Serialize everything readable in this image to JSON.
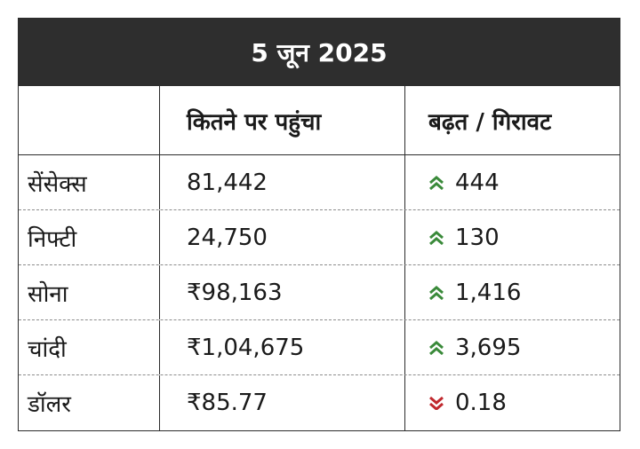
{
  "title": "5 जून 2025",
  "headers": [
    "",
    "कितने पर पहुंचा",
    "बढ़त / गिरावट"
  ],
  "colors": {
    "banner": "#2e2e2e",
    "up": "#3a8a3a",
    "down": "#c0282d"
  },
  "rows": [
    {
      "name": "सेंसेक्स",
      "value": "81,442",
      "change": "444",
      "direction": "up",
      "icon": "chevron-double-up-icon"
    },
    {
      "name": "निफ्टी",
      "value": "24,750",
      "change": "130",
      "direction": "up",
      "icon": "chevron-double-up-icon"
    },
    {
      "name": "सोना",
      "value": "₹98,163",
      "change": "1,416",
      "direction": "up",
      "icon": "chevron-double-up-icon"
    },
    {
      "name": "चांदी",
      "value": "₹1,04,675",
      "change": "3,695",
      "direction": "up",
      "icon": "chevron-double-up-icon"
    },
    {
      "name": "डॉलर",
      "value": "₹85.77",
      "change": "0.18",
      "direction": "down",
      "icon": "chevron-double-down-icon"
    }
  ]
}
